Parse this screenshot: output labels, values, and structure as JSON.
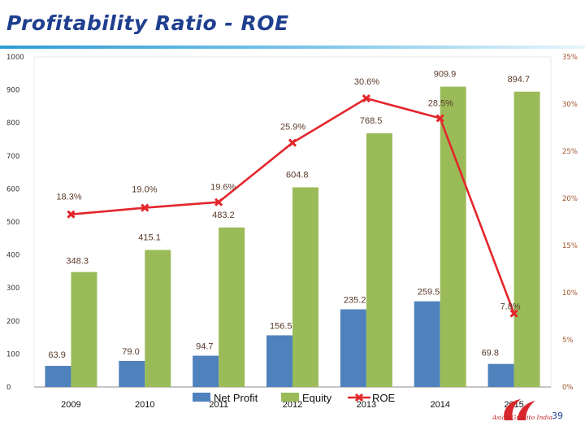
{
  "page": {
    "title": "Profitability Ratio - ROE",
    "page_number": "39",
    "brand_text": "Asian Granito India"
  },
  "colors": {
    "net_profit": "#4f81bd",
    "equity": "#9bbb59",
    "roe": "#e3262c",
    "title": "#1f3f8f",
    "label_text": "#5a3a2a"
  },
  "chart_data": {
    "type": "bar",
    "categories": [
      "2009",
      "2010",
      "2011",
      "2012",
      "2013",
      "2014",
      "2015"
    ],
    "series": [
      {
        "name": "Net Profit",
        "type": "bar",
        "axis": "left",
        "values": [
          63.9,
          79.0,
          94.7,
          156.5,
          235.2,
          259.5,
          69.8
        ],
        "labels": [
          "63.9",
          "79.0",
          "94.7",
          "156.5",
          "235.2",
          "259.5",
          "69.8"
        ]
      },
      {
        "name": "Equity",
        "type": "bar",
        "axis": "left",
        "values": [
          348.3,
          415.1,
          483.2,
          604.8,
          768.5,
          909.9,
          894.7
        ],
        "labels": [
          "348.3",
          "415.1",
          "483.2",
          "604.8",
          "768.5",
          "909.9",
          "894.7"
        ]
      },
      {
        "name": "ROE",
        "type": "line",
        "axis": "right",
        "values": [
          18.3,
          19.0,
          19.6,
          25.9,
          30.6,
          28.5,
          7.8
        ],
        "labels": [
          "18.3%",
          "19.0%",
          "19.6%",
          "25.9%",
          "30.6%",
          "28.5%",
          "7.8%"
        ]
      }
    ],
    "left_axis": {
      "ylim": [
        0,
        1000
      ],
      "ticks": [
        "0",
        "100",
        "200",
        "300",
        "400",
        "500",
        "600",
        "700",
        "800",
        "900",
        "1000"
      ]
    },
    "right_axis": {
      "ylim": [
        0,
        35
      ],
      "ticks": [
        "0%",
        "5%",
        "10%",
        "15%",
        "20%",
        "25%",
        "30%",
        "35%"
      ]
    },
    "legend_position": "bottom",
    "grid": false
  }
}
